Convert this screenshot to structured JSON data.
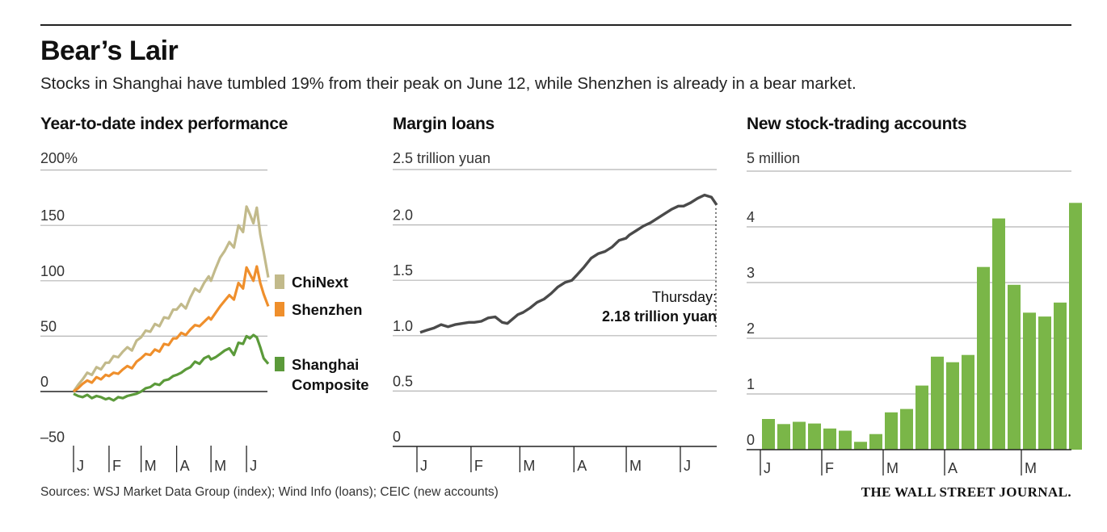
{
  "header": {
    "title": "Bear’s Lair",
    "subtitle": "Stocks in Shanghai have tumbled 19% from their peak on June 12, while Shenzhen is already in a bear market."
  },
  "footer": {
    "sources": "Sources: WSJ Market Data Group (index); Wind Info (loans); CEIC (new accounts)",
    "logo": "THE WALL STREET JOURNAL."
  },
  "colors": {
    "chinext": "#c2ba8b",
    "shenzhen": "#ef8f2c",
    "shanghai": "#5b9a3a",
    "loans": "#4a4a4a",
    "bars": "#7ab648",
    "grid": "#b5b5b5",
    "zero": "#222222"
  },
  "chart_data": [
    {
      "type": "line",
      "title": "Year-to-date index performance",
      "unit_label": "200%",
      "yticks": [
        "200%",
        "150",
        "100",
        "50",
        "0",
        "–50"
      ],
      "ylim": [
        -50,
        200
      ],
      "xlim": [
        0,
        170
      ],
      "x_ticks": [
        {
          "label": "J",
          "x": 0
        },
        {
          "label": "F",
          "x": 31
        },
        {
          "label": "M",
          "x": 59
        },
        {
          "label": "A",
          "x": 90
        },
        {
          "label": "M",
          "x": 120
        },
        {
          "label": "J",
          "x": 151
        }
      ],
      "series": [
        {
          "name": "ChiNext",
          "x": [
            0,
            4,
            8,
            12,
            16,
            20,
            24,
            28,
            31,
            35,
            39,
            43,
            47,
            51,
            55,
            59,
            63,
            67,
            71,
            75,
            79,
            83,
            87,
            90,
            94,
            98,
            102,
            106,
            110,
            114,
            118,
            120,
            124,
            128,
            132,
            136,
            140,
            144,
            148,
            151,
            154,
            157,
            160,
            163,
            166,
            170
          ],
          "values": [
            0,
            6,
            11,
            17,
            15,
            22,
            20,
            26,
            26,
            32,
            31,
            36,
            40,
            37,
            46,
            49,
            55,
            54,
            61,
            59,
            67,
            66,
            74,
            74,
            79,
            75,
            85,
            93,
            90,
            98,
            104,
            100,
            111,
            121,
            127,
            135,
            130,
            150,
            144,
            167,
            160,
            152,
            166,
            142,
            126,
            103
          ]
        },
        {
          "name": "Shenzhen",
          "x": [
            0,
            4,
            8,
            12,
            16,
            20,
            24,
            28,
            31,
            35,
            39,
            43,
            47,
            51,
            55,
            59,
            63,
            67,
            71,
            75,
            79,
            83,
            87,
            90,
            94,
            98,
            102,
            106,
            110,
            114,
            118,
            120,
            124,
            128,
            132,
            136,
            140,
            144,
            148,
            151,
            154,
            157,
            160,
            163,
            166,
            170
          ],
          "values": [
            0,
            3,
            7,
            10,
            8,
            13,
            11,
            15,
            14,
            17,
            16,
            20,
            23,
            21,
            27,
            30,
            34,
            33,
            38,
            36,
            43,
            42,
            48,
            48,
            53,
            51,
            56,
            60,
            59,
            63,
            67,
            65,
            71,
            77,
            82,
            87,
            83,
            98,
            93,
            112,
            106,
            100,
            113,
            98,
            88,
            77
          ]
        },
        {
          "name": "Shanghai Composite",
          "x": [
            0,
            4,
            8,
            12,
            16,
            20,
            24,
            28,
            31,
            35,
            39,
            43,
            47,
            51,
            55,
            59,
            63,
            67,
            71,
            75,
            79,
            83,
            87,
            90,
            94,
            98,
            102,
            106,
            110,
            114,
            118,
            120,
            124,
            128,
            132,
            136,
            140,
            144,
            148,
            151,
            154,
            157,
            160,
            163,
            166,
            170
          ],
          "values": [
            -2,
            -4,
            -5,
            -3,
            -6,
            -4,
            -5,
            -7,
            -6,
            -8,
            -5,
            -6,
            -4,
            -3,
            -2,
            0,
            3,
            4,
            7,
            6,
            10,
            11,
            14,
            15,
            17,
            20,
            22,
            27,
            25,
            30,
            32,
            29,
            31,
            34,
            37,
            39,
            33,
            44,
            43,
            50,
            48,
            51,
            49,
            40,
            30,
            25
          ]
        }
      ],
      "legend": [
        "ChiNext",
        "Shenzhen",
        "Shanghai",
        "Composite"
      ]
    },
    {
      "type": "line",
      "title": "Margin loans",
      "unit_label": "2.5 trillion yuan",
      "yticks": [
        "2.5 trillion yuan",
        "2.0",
        "1.5",
        "1.0",
        "0.5",
        "0"
      ],
      "ylim": [
        0,
        2.5
      ],
      "xlim": [
        0,
        170
      ],
      "x_ticks": [
        {
          "label": "J",
          "x": 0
        },
        {
          "label": "F",
          "x": 31
        },
        {
          "label": "M",
          "x": 59
        },
        {
          "label": "A",
          "x": 90
        },
        {
          "label": "M",
          "x": 120
        },
        {
          "label": "J",
          "x": 151
        }
      ],
      "series": [
        {
          "name": "Margin loans",
          "x": [
            0,
            4,
            8,
            12,
            16,
            20,
            24,
            28,
            31,
            35,
            39,
            43,
            47,
            50,
            53,
            56,
            59,
            63,
            67,
            71,
            75,
            79,
            83,
            87,
            90,
            94,
            98,
            102,
            106,
            110,
            114,
            118,
            120,
            124,
            128,
            132,
            136,
            140,
            144,
            148,
            151,
            155,
            159,
            163,
            167,
            170
          ],
          "values": [
            1.03,
            1.05,
            1.07,
            1.1,
            1.08,
            1.1,
            1.11,
            1.12,
            1.12,
            1.13,
            1.16,
            1.17,
            1.12,
            1.11,
            1.15,
            1.19,
            1.21,
            1.25,
            1.3,
            1.33,
            1.38,
            1.44,
            1.48,
            1.5,
            1.55,
            1.62,
            1.7,
            1.74,
            1.76,
            1.8,
            1.86,
            1.88,
            1.91,
            1.95,
            1.99,
            2.02,
            2.06,
            2.1,
            2.14,
            2.17,
            2.17,
            2.2,
            2.24,
            2.27,
            2.25,
            2.18
          ]
        }
      ],
      "annotation": {
        "line1": "Thursday:",
        "line2": "2.18 trillion yuan"
      }
    },
    {
      "type": "bar",
      "title": "New stock-trading accounts",
      "unit_label": "5 million",
      "yticks": [
        "5 million",
        "4",
        "3",
        "2",
        "1",
        "0"
      ],
      "ylim": [
        0,
        5
      ],
      "x_ticks": [
        {
          "label": "J",
          "index": 0
        },
        {
          "label": "F",
          "index": 4
        },
        {
          "label": "M",
          "index": 8
        },
        {
          "label": "A",
          "index": 12
        },
        {
          "label": "M",
          "index": 17
        }
      ],
      "values": [
        0.55,
        0.46,
        0.5,
        0.47,
        0.38,
        0.34,
        0.14,
        0.28,
        0.67,
        0.73,
        1.15,
        1.67,
        1.57,
        1.7,
        3.28,
        4.15,
        2.96,
        2.46,
        2.39,
        2.64,
        4.43
      ]
    }
  ]
}
